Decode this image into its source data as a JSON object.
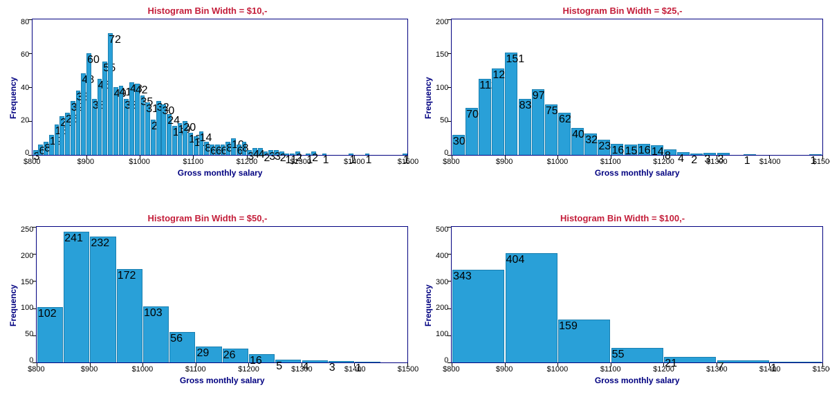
{
  "global": {
    "title_color": "#c41e3a",
    "label_color": "#000080",
    "tick_color": "#000000",
    "border_color": "#000080",
    "bar_fill": "#29a0d8",
    "bar_stroke": "#1a7fb0",
    "background_color": "#ffffff",
    "xlabel": "Gross monthly salary",
    "ylabel": "Frequency",
    "xlimits": [
      800,
      1500
    ],
    "xtick_step": 100,
    "xtick_labels": [
      "$800",
      "$900",
      "$1000",
      "$1100",
      "$1200",
      "$1300",
      "$1400",
      "$1500"
    ],
    "title_fontsize": 13,
    "label_fontsize": 12,
    "tick_fontsize": 11
  },
  "panels": [
    {
      "title": "Histogram Bin Width = $10,-",
      "bin_width": 10,
      "x_start": 800,
      "ylim": [
        0,
        80
      ],
      "ytick_step": 20,
      "ytick_labels": [
        "80",
        "60",
        "40",
        "20",
        "0"
      ],
      "bar_gap_ratio": 0.12,
      "values": [
        3,
        6,
        8,
        12,
        18,
        23,
        25,
        32,
        38,
        48,
        60,
        33,
        45,
        55,
        72,
        40,
        41,
        33,
        43,
        42,
        35,
        31,
        21,
        32,
        30,
        24,
        17,
        19,
        20,
        13,
        11,
        14,
        8,
        6,
        6,
        6,
        8,
        10,
        6,
        8,
        3,
        4,
        4,
        2,
        3,
        3,
        2,
        1,
        1,
        2,
        0,
        1,
        2,
        0,
        1,
        0,
        0,
        0,
        0,
        1,
        0,
        0,
        1,
        0,
        0,
        0,
        0,
        0,
        0,
        1
      ]
    },
    {
      "title": "Histogram Bin Width = $25,-",
      "bin_width": 25,
      "x_start": 800,
      "ylim": [
        0,
        200
      ],
      "ytick_step": 50,
      "ytick_labels": [
        "200",
        "150",
        "100",
        "50",
        "0"
      ],
      "bar_gap_ratio": 0.06,
      "values": [
        30,
        70,
        112,
        128,
        151,
        83,
        97,
        75,
        62,
        40,
        32,
        23,
        16,
        15,
        16,
        14,
        8,
        4,
        2,
        3,
        3,
        0,
        1,
        0,
        0,
        0,
        0,
        1
      ]
    },
    {
      "title": "Histogram Bin Width = $50,-",
      "bin_width": 50,
      "x_start": 800,
      "ylim": [
        0,
        250
      ],
      "ytick_step": 50,
      "ytick_labels": [
        "250",
        "200",
        "150",
        "100",
        "50",
        "0"
      ],
      "bar_gap_ratio": 0.03,
      "values": [
        102,
        241,
        232,
        172,
        103,
        56,
        29,
        26,
        16,
        5,
        4,
        3,
        1,
        0
      ]
    },
    {
      "title": "Histogram Bin Width = $100,-",
      "bin_width": 100,
      "x_start": 800,
      "ylim": [
        0,
        500
      ],
      "ytick_step": 100,
      "ytick_labels": [
        "500",
        "400",
        "300",
        "200",
        "100",
        "0"
      ],
      "bar_gap_ratio": 0.02,
      "values": [
        343,
        404,
        159,
        55,
        21,
        7,
        1
      ]
    }
  ]
}
